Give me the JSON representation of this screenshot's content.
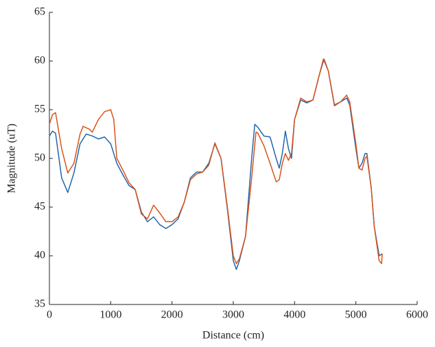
{
  "chart_data": {
    "type": "line",
    "xlabel": "Distance (cm)",
    "ylabel": "Magnitude (uT)",
    "xlim": [
      0,
      6000
    ],
    "xticks": [
      0,
      1000,
      2000,
      3000,
      4000,
      5000,
      6000
    ],
    "ylim": [
      35,
      65
    ],
    "yticks": [
      35,
      40,
      45,
      50,
      55,
      60,
      65
    ],
    "grid": false,
    "series": [
      {
        "color": "#2166ac",
        "x": [
          0,
          50,
          100,
          200,
          300,
          400,
          500,
          600,
          700,
          800,
          900,
          1000,
          1100,
          1200,
          1300,
          1400,
          1500,
          1600,
          1700,
          1800,
          1900,
          2000,
          2100,
          2200,
          2300,
          2400,
          2500,
          2600,
          2700,
          2800,
          2900,
          3000,
          3050,
          3100,
          3200,
          3300,
          3350,
          3400,
          3500,
          3600,
          3700,
          3750,
          3800,
          3850,
          3900,
          3950,
          4000,
          4100,
          4200,
          4300,
          4400,
          4480,
          4550,
          4650,
          4750,
          4850,
          4900,
          5000,
          5050,
          5100,
          5150,
          5180,
          5250,
          5300,
          5380,
          5430
        ],
        "values": [
          52.3,
          52.8,
          52.6,
          48,
          46.5,
          48.5,
          51.5,
          52.5,
          52.3,
          52,
          52.2,
          51.5,
          49.5,
          48.3,
          47.2,
          46.8,
          44.5,
          43.5,
          44,
          43.2,
          42.8,
          43.2,
          43.8,
          45.5,
          48,
          48.6,
          48.6,
          49.5,
          51.5,
          50,
          45,
          39.5,
          38.6,
          39.5,
          42,
          50,
          53.5,
          53.2,
          52.3,
          52.2,
          50,
          49,
          50.5,
          52.8,
          51,
          50,
          54,
          56,
          55.7,
          56,
          58.5,
          60.2,
          59,
          55.5,
          55.8,
          56.2,
          55.5,
          51,
          49,
          49.5,
          50.5,
          50.5,
          47,
          43,
          40,
          40.2
        ]
      },
      {
        "color": "#d95319",
        "x": [
          0,
          50,
          100,
          200,
          300,
          400,
          500,
          550,
          650,
          700,
          800,
          900,
          1000,
          1050,
          1100,
          1200,
          1300,
          1400,
          1500,
          1600,
          1700,
          1800,
          1900,
          2000,
          2100,
          2200,
          2300,
          2400,
          2500,
          2600,
          2700,
          2800,
          2900,
          3000,
          3050,
          3100,
          3200,
          3300,
          3370,
          3400,
          3500,
          3600,
          3700,
          3750,
          3800,
          3850,
          3900,
          3950,
          4000,
          4100,
          4200,
          4300,
          4400,
          4470,
          4550,
          4650,
          4750,
          4850,
          4900,
          5000,
          5050,
          5100,
          5150,
          5180,
          5250,
          5300,
          5380,
          5420,
          5430
        ],
        "values": [
          53.5,
          54.5,
          54.7,
          51,
          48.5,
          49.5,
          52.5,
          53.3,
          53,
          52.7,
          54,
          54.8,
          55,
          54,
          50,
          48.8,
          47.5,
          46.8,
          44.3,
          43.8,
          45.2,
          44.4,
          43.5,
          43.5,
          44,
          45.5,
          47.8,
          48.4,
          48.6,
          49.3,
          51.6,
          50,
          45.2,
          40,
          39.2,
          39.7,
          42,
          48,
          52.7,
          52.6,
          51.3,
          49.5,
          47.6,
          47.8,
          49.5,
          50.5,
          49.8,
          50.5,
          54,
          56.2,
          55.8,
          56,
          58.5,
          60.2,
          59,
          55.4,
          55.8,
          56.5,
          55.8,
          51.5,
          49,
          48.8,
          50,
          50.2,
          47,
          43,
          39.5,
          39.2,
          40.2
        ]
      }
    ]
  }
}
